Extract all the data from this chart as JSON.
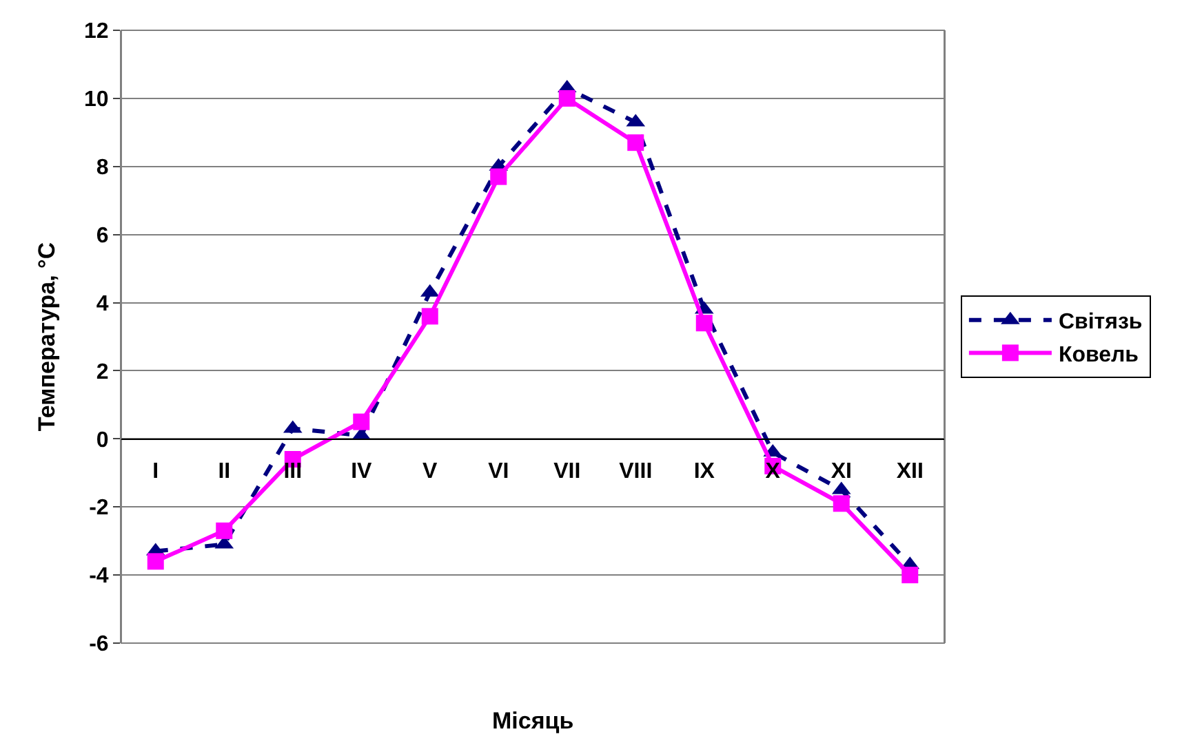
{
  "chart_data": {
    "type": "line",
    "xlabel": "Місяць",
    "ylabel": "Температура, °С",
    "categories": [
      "I",
      "II",
      "III",
      "IV",
      "V",
      "VI",
      "VII",
      "VIII",
      "IX",
      "X",
      "XI",
      "XII"
    ],
    "series": [
      {
        "name": "Світязь",
        "color": "#000080",
        "marker": "triangle",
        "line_style": "dashed",
        "values": [
          -3.3,
          -3.1,
          0.3,
          0.1,
          4.3,
          8.0,
          10.3,
          9.3,
          3.8,
          -0.4,
          -1.5,
          -3.7
        ]
      },
      {
        "name": "Ковель",
        "color": "#ff00ff",
        "marker": "square",
        "line_style": "solid",
        "values": [
          -3.6,
          -2.7,
          -0.6,
          0.5,
          3.6,
          7.7,
          10.0,
          8.7,
          3.4,
          -0.8,
          -1.9,
          -4.0
        ]
      }
    ],
    "ylim": [
      -6,
      12
    ],
    "yticks": [
      -6,
      -4,
      -2,
      0,
      2,
      4,
      6,
      8,
      10,
      12
    ],
    "grid": "y",
    "legend": "right"
  }
}
